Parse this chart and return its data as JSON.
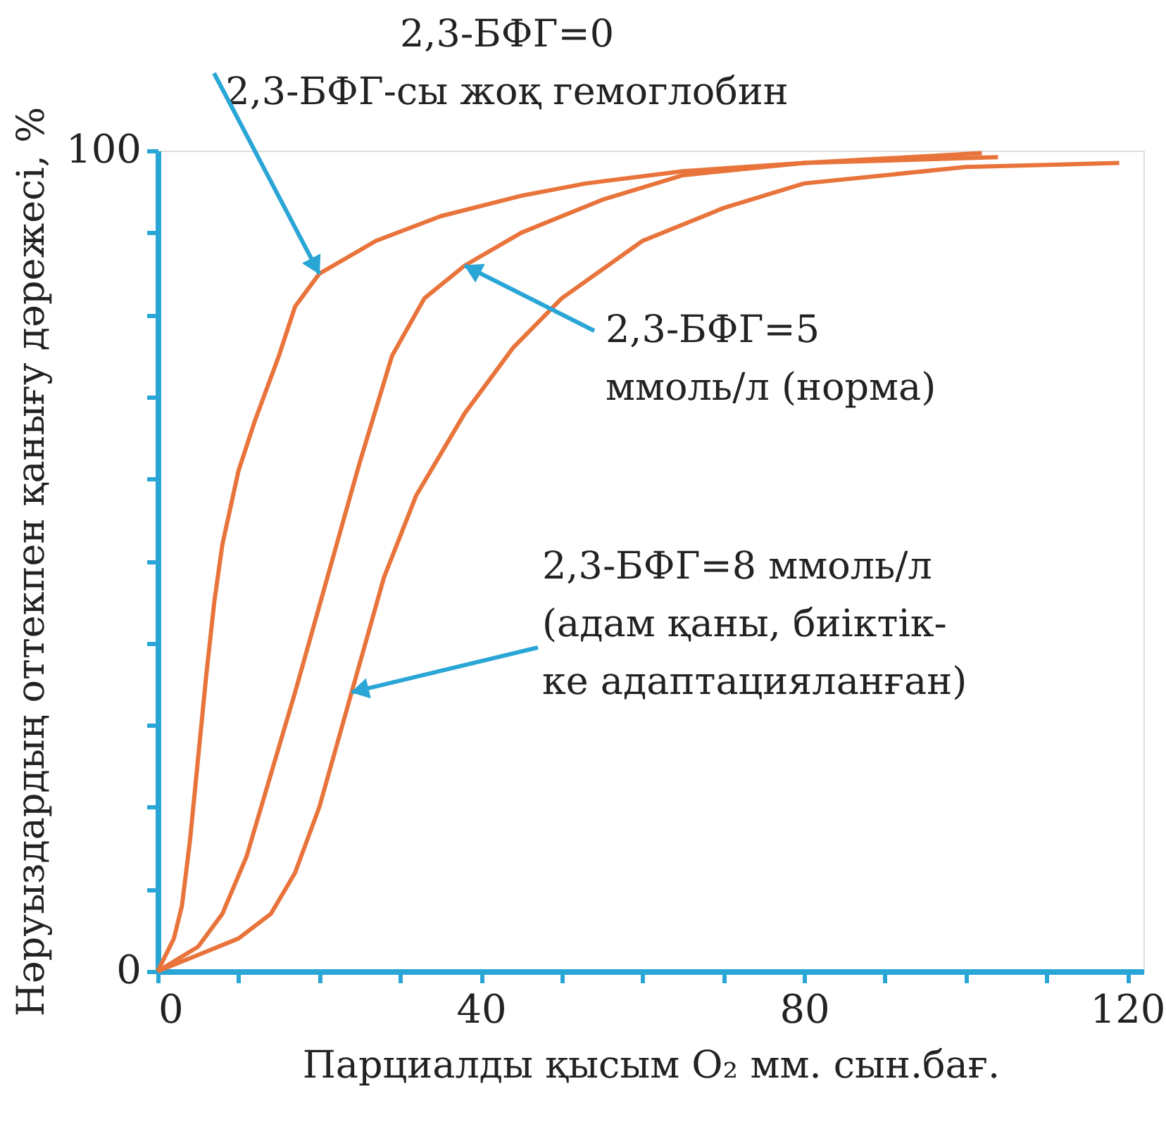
{
  "chart_data": {
    "type": "line",
    "xlabel": "Парциалды қысым O₂ мм. сын.бағ.",
    "ylabel": "Нәруыздардың оттекпен қанығу дәрежесі, %",
    "xlim": [
      0,
      122
    ],
    "ylim": [
      0,
      100
    ],
    "xticks": [
      0,
      {
        "value": 10,
        "label": null
      },
      {
        "value": 20,
        "label": null
      },
      {
        "value": 30,
        "label": null
      },
      40,
      {
        "value": 50,
        "label": null
      },
      {
        "value": 60,
        "label": null
      },
      {
        "value": 70,
        "label": null
      },
      80,
      {
        "value": 90,
        "label": null
      },
      {
        "value": 100,
        "label": null
      },
      {
        "value": 110,
        "label": null
      },
      120
    ],
    "yticks": [
      0,
      {
        "value": 10,
        "label": null
      },
      {
        "value": 20,
        "label": null
      },
      {
        "value": 30,
        "label": null
      },
      {
        "value": 40,
        "label": null
      },
      {
        "value": 50,
        "label": null
      },
      {
        "value": 60,
        "label": null
      },
      {
        "value": 70,
        "label": null
      },
      {
        "value": 80,
        "label": null
      },
      {
        "value": 90,
        "label": null
      },
      100
    ],
    "grid": false,
    "legend": false,
    "marker": "none",
    "line_style": "solid",
    "series": [
      {
        "color": "#e8743b",
        "x": [
          0,
          1,
          2,
          3,
          4,
          5,
          6,
          7,
          8,
          10,
          12,
          15,
          17,
          20,
          27,
          35,
          45,
          53,
          65,
          80,
          102
        ],
        "values": [
          0,
          2,
          4,
          8,
          16,
          26,
          36,
          45,
          52,
          61,
          67,
          75,
          81,
          85,
          89,
          92,
          94.5,
          96,
          97.5,
          98.5,
          99.7
        ]
      },
      {
        "color": "#e8743b",
        "x": [
          0,
          5,
          8,
          11,
          14,
          17,
          21,
          25,
          29,
          33,
          38,
          45,
          55,
          65,
          80,
          104
        ],
        "values": [
          0,
          3,
          7,
          14,
          24,
          34,
          48,
          62,
          75,
          82,
          86,
          90,
          94,
          97,
          98.5,
          99.2
        ]
      },
      {
        "color": "#e8743b",
        "x": [
          0,
          5,
          10,
          14,
          17,
          20,
          24,
          28,
          32,
          38,
          44,
          50,
          60,
          70,
          80,
          100,
          119
        ],
        "values": [
          0,
          2,
          4,
          7,
          12,
          20,
          34,
          48,
          58,
          68,
          76,
          82,
          89,
          93,
          96,
          98,
          98.5
        ]
      }
    ],
    "annotations": [
      {
        "text": "2,3-БФГ=0\n2,3-БФГ-сы жоқ гемоглобин",
        "x": 20,
        "y": 85
      },
      {
        "text": "2,3-БФГ=5\nммоль/л (норма)",
        "x": 38,
        "y": 86
      },
      {
        "text": "2,3-БФГ=8 ммоль/л\n(адам қаны, биіктік-\nке адаптацияланған)",
        "x": 24,
        "y": 34
      }
    ]
  }
}
